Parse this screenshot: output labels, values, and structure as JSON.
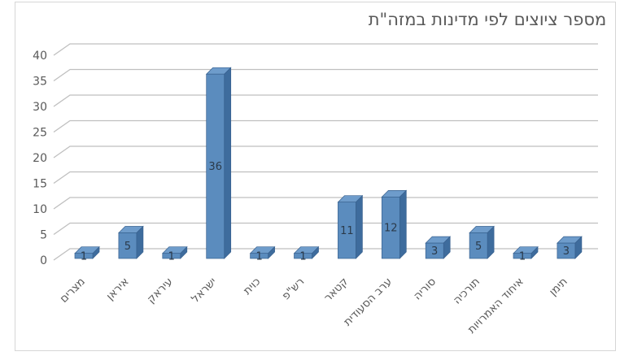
{
  "window": {
    "background_color": "#FFFFFF",
    "frame_border_color": "#D6D6D6"
  },
  "chart_data": {
    "type": "bar",
    "style": "3d-column",
    "title": "מספר ציוצים לפי מדינות במזה\"ת",
    "categories": [
      "מצרים",
      "איראן",
      "עיראק",
      "ישראל",
      "כוית",
      "רש\"פ",
      "קטאר",
      "ערב הסעודית",
      "סוריה",
      "תורכיה",
      "איחוד האמרויות",
      "תימן"
    ],
    "values": [
      1,
      5,
      1,
      36,
      1,
      1,
      11,
      12,
      3,
      5,
      1,
      3
    ],
    "xlabel": "",
    "ylabel": "",
    "ylim": [
      0,
      40
    ],
    "ytick_step": 5,
    "yticks": [
      0,
      5,
      10,
      15,
      20,
      25,
      30,
      35,
      40
    ],
    "grid": true,
    "legend": "none",
    "data_labels": true,
    "category_label_rotation_deg": -45,
    "colors": {
      "bar_front": "#5B8CBE",
      "bar_top": "#6E9CCB",
      "bar_side": "#3E6C9D",
      "bar_edge": "#38618F",
      "gridline": "#BFBFBF",
      "axis_text": "#595959",
      "title_text": "#595959",
      "data_label": "#2B3A4A"
    }
  }
}
